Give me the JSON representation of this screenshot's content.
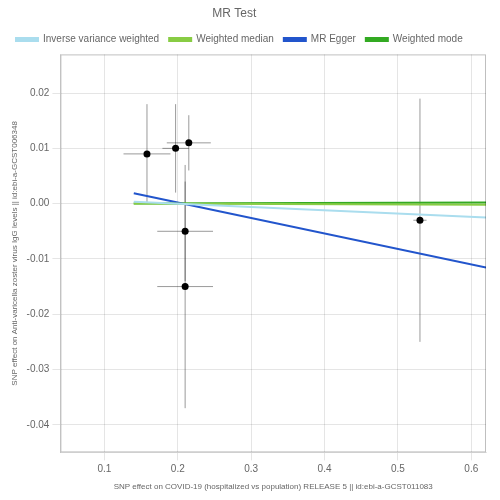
{
  "chart_data": {
    "type": "scatter",
    "title": "MR Test",
    "xlabel": "SNP effect on COVID-19 (hospitalized vs population) RELEASE 5 || id:ebi-a-GCST011083",
    "ylabel": "SNP effect on Anti-varicella zoster virus IgG levels || id:ebi-a-GCST006348",
    "xlim": [
      0.04,
      0.62
    ],
    "ylim": [
      -0.045,
      0.027
    ],
    "xticks": [
      0.1,
      0.2,
      0.3,
      0.4,
      0.5,
      0.6
    ],
    "yticks": [
      -0.04,
      -0.03,
      -0.02,
      -0.01,
      {
        "value": 0,
        "label": "0.00"
      },
      0.01,
      0.02
    ],
    "grid": true,
    "legend": "top",
    "series": [
      {
        "type": "scatter",
        "marker": "circle",
        "color": "#000000",
        "x": [
          0.158,
          0.197,
          0.215,
          0.21,
          0.21,
          0.53
        ],
        "values": [
          0.009,
          0.01,
          0.011,
          -0.005,
          -0.015,
          -0.003
        ],
        "x_error": [
          0.032,
          0.018,
          0.03,
          0.038,
          0.038,
          0.009
        ],
        "y_error": [
          0.009,
          0.008,
          0.005,
          0.009,
          0.022,
          0.022
        ]
      },
      {
        "name": "Inverse variance weighted",
        "type": "line",
        "color": "#aaddee",
        "x": [
          0.14,
          0.62
        ],
        "values": [
          0.00036,
          -0.00252
        ]
      },
      {
        "name": "Weighted median",
        "type": "line",
        "color": "#88cc44",
        "x": [
          0.14,
          0.62
        ],
        "values": [
          3e-05,
          -0.00021
        ]
      },
      {
        "name": "MR Egger",
        "type": "line",
        "color": "#2255cc",
        "x": [
          0.14,
          0.62
        ],
        "values": [
          0.00188,
          -0.01156
        ]
      },
      {
        "name": "Weighted mode",
        "type": "line",
        "color": "#33aa22",
        "x": [
          0.14,
          0.62
        ],
        "values": [
          4.2e-05,
          0.000186
        ]
      }
    ]
  }
}
